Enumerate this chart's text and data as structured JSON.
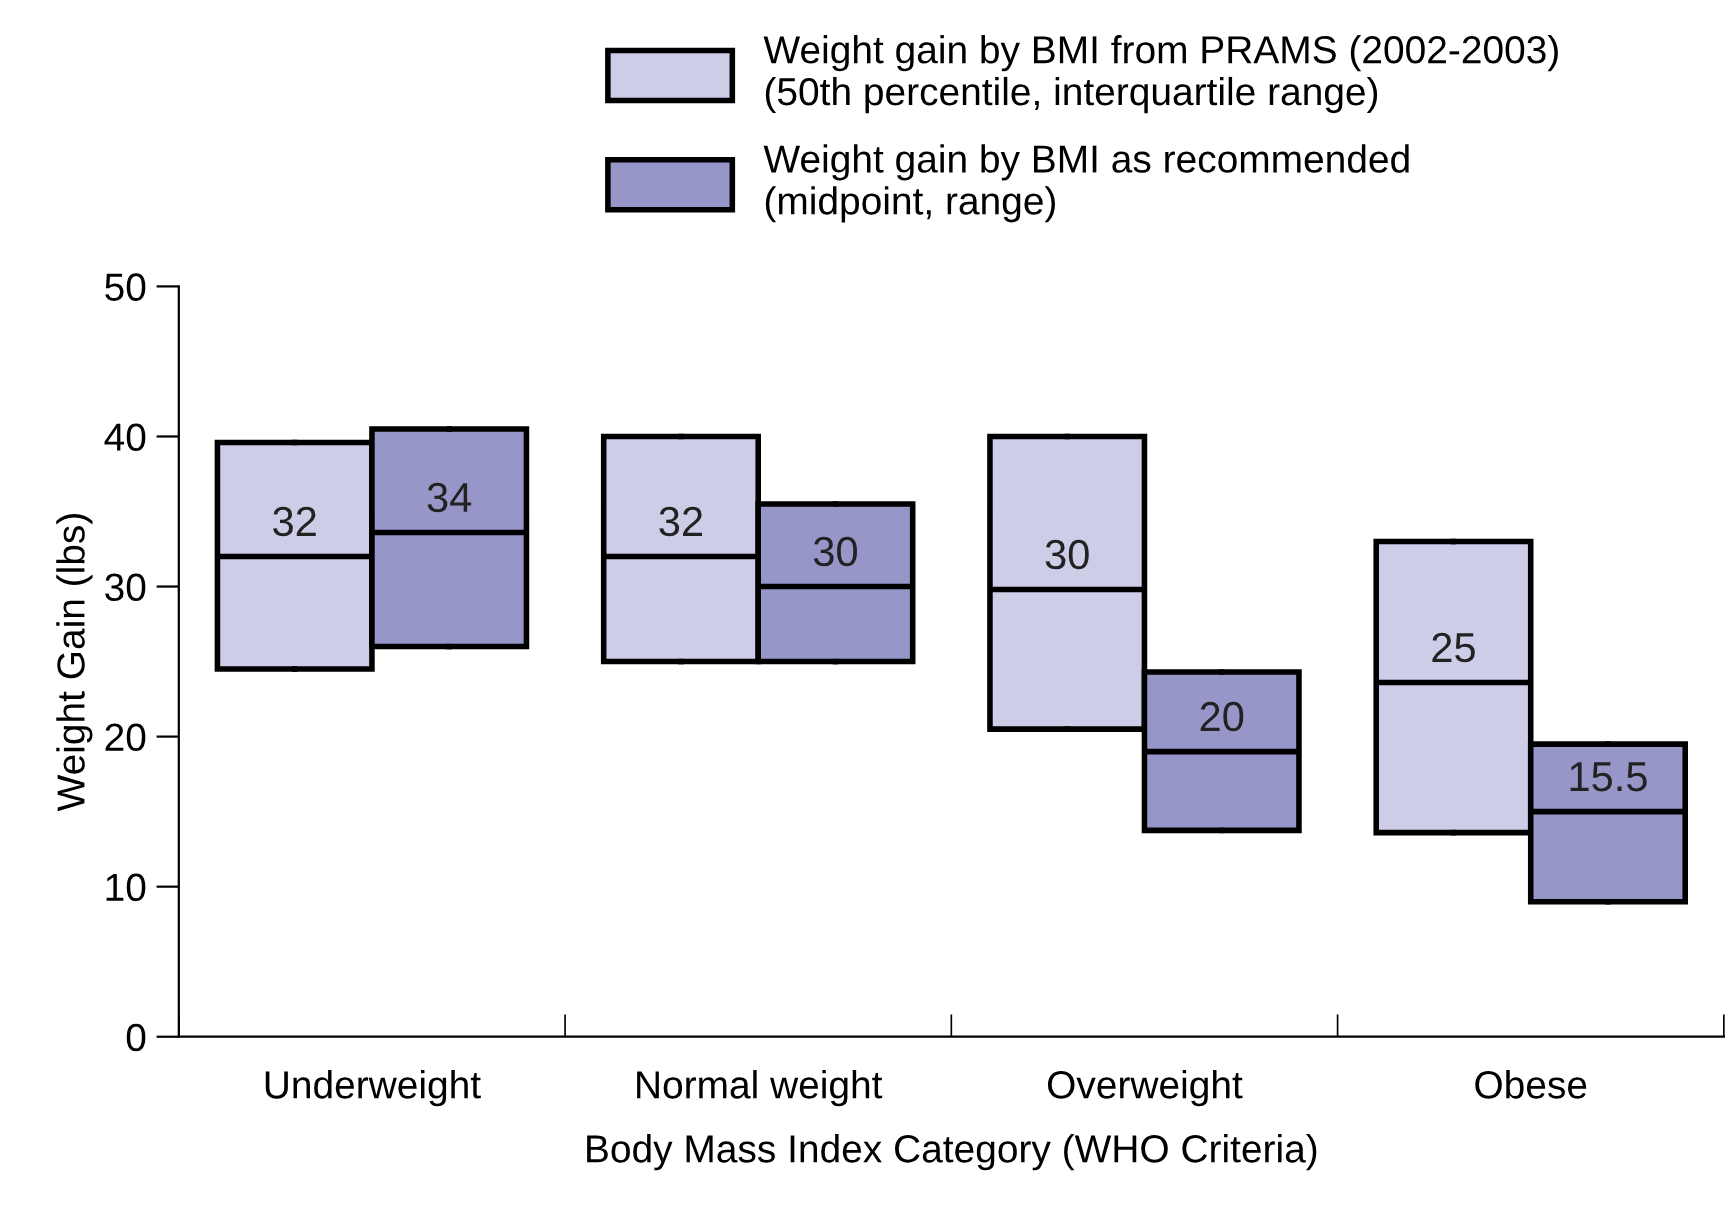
{
  "chart_data": {
    "type": "box",
    "xlabel": "Body Mass Index Category (WHO Criteria)",
    "ylabel": "Weight Gain (lbs)",
    "categories": [
      "Underweight",
      "Normal weight",
      "Overweight",
      "Obese"
    ],
    "ylim": [
      0,
      50
    ],
    "yticks": [
      0,
      10,
      20,
      30,
      40,
      50
    ],
    "grid": false,
    "legend": "top",
    "series": [
      {
        "name": "Weight gain by BMI from PRAMS (2002-2003)\n(50th percentile, interquartile range)",
        "color": "#cecde8",
        "value_labels": [
          "32",
          "32",
          "30",
          "25"
        ],
        "boxes": [
          {
            "low": 24.5,
            "q1": 24.5,
            "median": 32,
            "q3": 39.6,
            "high": 39.6
          },
          {
            "low": 25,
            "q1": 25,
            "median": 32,
            "q3": 40,
            "high": 40
          },
          {
            "low": 20.5,
            "q1": 20.5,
            "median": 29.8,
            "q3": 40,
            "high": 40
          },
          {
            "low": 13.6,
            "q1": 13.6,
            "median": 23.6,
            "q3": 33,
            "high": 33
          }
        ]
      },
      {
        "name": "Weight gain by BMI as recommended\n(midpoint, range)",
        "color": "#9796c8",
        "value_labels": [
          "34",
          "30",
          "20",
          "15.5"
        ],
        "boxes": [
          {
            "low": 26,
            "q1": 26,
            "median": 33.6,
            "q3": 40.5,
            "high": 40.5
          },
          {
            "low": 25,
            "q1": 25,
            "median": 30,
            "q3": 35.5,
            "high": 35.5
          },
          {
            "low": 13.75,
            "q1": 13.75,
            "median": 19,
            "q3": 24.3,
            "high": 24.3
          },
          {
            "low": 9,
            "q1": 9,
            "median": 15,
            "q3": 19.5,
            "high": 19.5
          }
        ]
      }
    ]
  }
}
